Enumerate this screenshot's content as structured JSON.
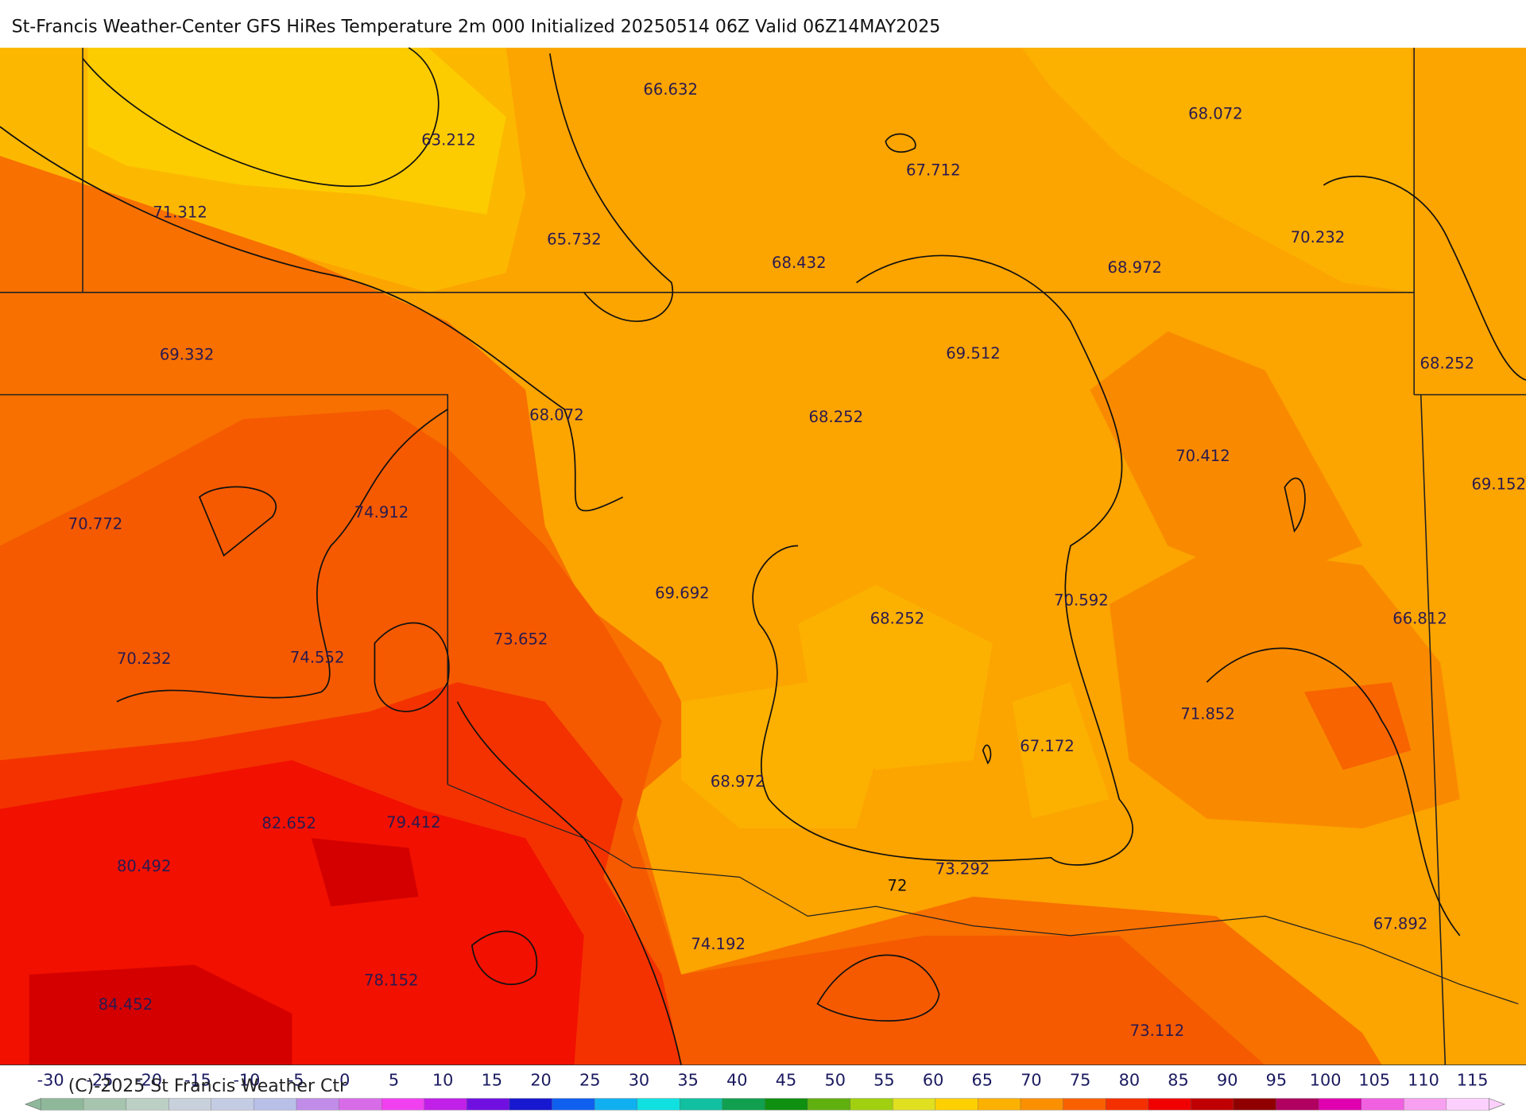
{
  "header": {
    "title": "St-Francis Weather-Center GFS HiRes Temperature 2m  000 Initialized 20250514 06Z Valid 06Z14MAY2025"
  },
  "map": {
    "labels": [
      66.632,
      63.212,
      68.072,
      67.712,
      71.312,
      65.732,
      68.432,
      68.972,
      70.232,
      69.332,
      69.512,
      68.252,
      68.072,
      68.252,
      70.412,
      69.152,
      70.772,
      74.912,
      69.692,
      68.252,
      70.592,
      66.812,
      70.232,
      74.552,
      73.652,
      71.852,
      67.172,
      68.972,
      82.652,
      79.412,
      80.492,
      73.292,
      74.192,
      67.892,
      78.152,
      84.452,
      73.112
    ],
    "contour_label": 72
  },
  "colorbar": {
    "ticks": [
      -30,
      -25,
      -20,
      -15,
      -10,
      -5,
      0,
      5,
      10,
      15,
      20,
      25,
      30,
      35,
      40,
      45,
      50,
      55,
      60,
      65,
      70,
      75,
      80,
      85,
      90,
      95,
      100,
      105,
      110,
      115
    ],
    "colors": [
      "#8fb89a",
      "#a6c4ae",
      "#bccfc4",
      "#c8d0dc",
      "#c4cce4",
      "#b8c0e8",
      "#c08ce8",
      "#d86ce8",
      "#f040f0",
      "#c020e8",
      "#7010e0",
      "#1818d0",
      "#1060f0",
      "#10b0f0",
      "#10e0e0",
      "#10c0a0",
      "#10a050",
      "#109010",
      "#60b010",
      "#a0d010",
      "#e0e020",
      "#ffd000",
      "#fcb000",
      "#fa9000",
      "#f86000",
      "#f43000",
      "#f00000",
      "#c00000",
      "#900000",
      "#b00060",
      "#e000b0",
      "#f060e0",
      "#f8a0f0",
      "#fcd0fc"
    ],
    "copyright": "(C)-2025 St Francis Weather Ctr"
  }
}
